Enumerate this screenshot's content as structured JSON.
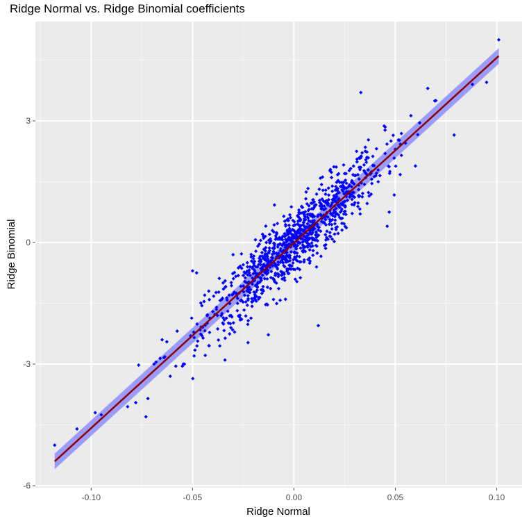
{
  "chart_data": {
    "type": "scatter",
    "title": "Ridge Normal vs. Ridge Binomial coefficients",
    "xlabel": "Ridge Normal",
    "ylabel": "Ridge Binomial",
    "xlim": [
      -0.1275,
      0.1125
    ],
    "ylim": [
      -6.05,
      5.45
    ],
    "x_ticks": [
      -0.1,
      -0.05,
      0.0,
      0.05,
      0.1
    ],
    "x_tick_labels": [
      "-0.10",
      "-0.05",
      "0.00",
      "0.05",
      "0.10"
    ],
    "y_ticks": [
      -6,
      -3,
      0,
      3
    ],
    "y_tick_labels": [
      "-6",
      "-3",
      "0",
      "3"
    ],
    "grid": true,
    "point_color": "#0000ff",
    "fit_line": {
      "type": "linear",
      "x": [
        -0.118,
        0.101
      ],
      "y": [
        -5.4,
        4.6
      ],
      "line_color": "#8b0000",
      "band_color": "#8080ff",
      "band_halfwidth": 0.12
    },
    "n_points": 1000,
    "points_noise_sd": 0.42,
    "series": [
      {
        "values": [
          [
            -0.118,
            -5.0
          ],
          [
            -0.107,
            -4.6
          ],
          [
            -0.098,
            -4.2
          ],
          [
            -0.095,
            -4.25
          ],
          [
            -0.082,
            -4.05
          ],
          [
            -0.078,
            -3.95
          ],
          [
            -0.073,
            -4.3
          ],
          [
            -0.072,
            -3.85
          ],
          [
            -0.069,
            -3.0
          ],
          [
            -0.068,
            -2.95
          ],
          [
            -0.065,
            -2.4
          ],
          [
            -0.061,
            -3.3
          ],
          [
            -0.055,
            -3.05
          ],
          [
            -0.054,
            -3.0
          ],
          [
            -0.05,
            -0.7
          ],
          [
            -0.048,
            -0.75
          ],
          [
            -0.044,
            -1.3
          ],
          [
            -0.042,
            -1.2
          ],
          [
            -0.034,
            -2.9
          ],
          [
            -0.03,
            -0.3
          ],
          [
            -0.025,
            -0.55
          ],
          [
            -0.023,
            -0.5
          ],
          [
            -0.02,
            -0.4
          ],
          [
            -0.015,
            0.15
          ],
          [
            -0.012,
            0.2
          ],
          [
            0.0,
            0.3
          ],
          [
            0.005,
            0.7
          ],
          [
            0.01,
            1.0
          ],
          [
            0.012,
            -2.05
          ],
          [
            0.018,
            1.8
          ],
          [
            0.025,
            1.7
          ],
          [
            0.03,
            1.65
          ],
          [
            0.033,
            3.7
          ],
          [
            0.036,
            2.1
          ],
          [
            0.045,
            2.85
          ],
          [
            0.047,
            0.75
          ],
          [
            0.046,
            0.4
          ],
          [
            0.05,
            2.3
          ],
          [
            0.053,
            2.15
          ],
          [
            0.055,
            2.45
          ],
          [
            0.062,
            2.95
          ],
          [
            0.066,
            3.8
          ],
          [
            0.07,
            3.5
          ],
          [
            0.079,
            2.65
          ],
          [
            0.088,
            3.9
          ],
          [
            0.095,
            3.95
          ],
          [
            0.101,
            5.0
          ]
        ]
      }
    ]
  }
}
